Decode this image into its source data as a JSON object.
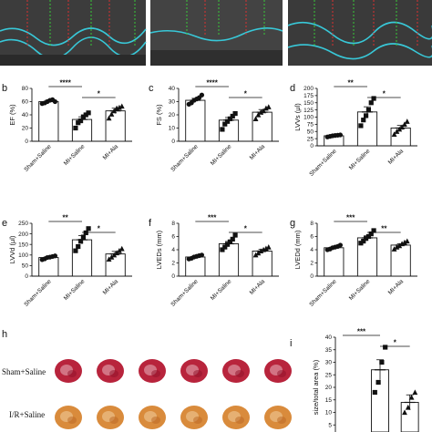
{
  "top_panels": [
    {
      "name": "echo-sham"
    },
    {
      "name": "echo-mi"
    },
    {
      "name": "echo-mi-ala"
    }
  ],
  "chart_data": [
    {
      "type": "bar",
      "panel": "b",
      "ylabel": "EF (%)",
      "categories": [
        "Sham+Saline",
        "MI+Saline",
        "MI+Ala"
      ],
      "values": [
        60,
        33,
        46
      ],
      "errors": [
        2,
        4,
        4
      ],
      "ylim": [
        0,
        80
      ],
      "yticks": [
        0,
        20,
        40,
        60,
        80
      ],
      "points": [
        [
          57,
          58,
          60,
          62,
          63,
          60
        ],
        [
          20,
          28,
          31,
          37,
          40,
          43
        ],
        [
          35,
          41,
          46,
          50,
          51,
          53
        ]
      ],
      "markers": [
        "circle",
        "square",
        "triangle"
      ],
      "comparisons": [
        {
          "from": 0,
          "to": 1,
          "label": "****"
        },
        {
          "from": 1,
          "to": 2,
          "label": "*"
        }
      ]
    },
    {
      "type": "bar",
      "panel": "c",
      "ylabel": "FS (%)",
      "categories": [
        "Sham+Saline",
        "MI+Saline",
        "MI+Ala"
      ],
      "values": [
        31,
        16,
        22
      ],
      "errors": [
        1.5,
        2,
        2
      ],
      "ylim": [
        0,
        40
      ],
      "yticks": [
        0,
        10,
        20,
        30,
        40
      ],
      "points": [
        [
          28,
          29,
          31,
          32,
          33,
          35
        ],
        [
          9,
          13,
          15,
          17,
          19,
          21
        ],
        [
          17,
          20,
          22,
          23,
          25,
          26
        ]
      ],
      "markers": [
        "circle",
        "square",
        "triangle"
      ],
      "comparisons": [
        {
          "from": 0,
          "to": 1,
          "label": "****"
        },
        {
          "from": 1,
          "to": 2,
          "label": "*"
        }
      ]
    },
    {
      "type": "bar",
      "panel": "d",
      "ylabel": "LVVs (μl)",
      "categories": [
        "Sham+Saline",
        "MI+Saline",
        "MI+Ala"
      ],
      "values": [
        35,
        118,
        62
      ],
      "errors": [
        3,
        18,
        9
      ],
      "ylim": [
        0,
        200
      ],
      "yticks": [
        0,
        25,
        50,
        75,
        100,
        125,
        150,
        175,
        200
      ],
      "points": [
        [
          31,
          33,
          35,
          36,
          37,
          38
        ],
        [
          70,
          90,
          105,
          125,
          150,
          165
        ],
        [
          40,
          50,
          58,
          65,
          75,
          85
        ]
      ],
      "markers": [
        "circle",
        "square",
        "triangle"
      ],
      "comparisons": [
        {
          "from": 0,
          "to": 1,
          "label": "**"
        },
        {
          "from": 1,
          "to": 2,
          "label": "*"
        }
      ]
    },
    {
      "type": "bar",
      "panel": "e",
      "ylabel": "LVVd (μl)",
      "categories": [
        "Sham+Saline",
        "MI+Saline",
        "MI+Ala"
      ],
      "values": [
        88,
        172,
        105
      ],
      "errors": [
        5,
        20,
        12
      ],
      "ylim": [
        0,
        250
      ],
      "yticks": [
        0,
        50,
        100,
        150,
        200,
        250
      ],
      "points": [
        [
          78,
          82,
          88,
          90,
          93,
          96
        ],
        [
          120,
          140,
          165,
          185,
          205,
          225
        ],
        [
          80,
          90,
          100,
          110,
          120,
          130
        ]
      ],
      "markers": [
        "circle",
        "square",
        "triangle"
      ],
      "comparisons": [
        {
          "from": 0,
          "to": 1,
          "label": "**"
        },
        {
          "from": 1,
          "to": 2,
          "label": "*"
        }
      ]
    },
    {
      "type": "bar",
      "panel": "f",
      "ylabel": "LVEDs (mm)",
      "categories": [
        "Sham+Saline",
        "MI+Saline",
        "MI+Ala"
      ],
      "values": [
        2.9,
        4.9,
        3.8
      ],
      "errors": [
        0.15,
        0.35,
        0.25
      ],
      "ylim": [
        0,
        8
      ],
      "yticks": [
        0,
        2,
        4,
        6,
        8
      ],
      "points": [
        [
          2.6,
          2.7,
          2.9,
          3.0,
          3.1,
          3.2
        ],
        [
          4.0,
          4.4,
          4.8,
          5.2,
          5.6,
          6.2
        ],
        [
          3.2,
          3.5,
          3.8,
          4.0,
          4.2,
          4.4
        ]
      ],
      "markers": [
        "circle",
        "square",
        "triangle"
      ],
      "comparisons": [
        {
          "from": 0,
          "to": 1,
          "label": "***"
        },
        {
          "from": 1,
          "to": 2,
          "label": "*"
        }
      ]
    },
    {
      "type": "bar",
      "panel": "g",
      "ylabel": "LVEDd (mm)",
      "categories": [
        "Sham+Saline",
        "MI+Saline",
        "MI+Ala"
      ],
      "values": [
        4.3,
        5.8,
        4.7
      ],
      "errors": [
        0.12,
        0.3,
        0.2
      ],
      "ylim": [
        0,
        8
      ],
      "yticks": [
        0,
        2,
        4,
        6,
        8
      ],
      "points": [
        [
          4.0,
          4.1,
          4.3,
          4.4,
          4.5,
          4.7
        ],
        [
          5.0,
          5.3,
          5.7,
          6.0,
          6.4,
          6.9
        ],
        [
          4.1,
          4.4,
          4.6,
          4.9,
          5.1,
          5.3
        ]
      ],
      "markers": [
        "circle",
        "square",
        "triangle"
      ],
      "comparisons": [
        {
          "from": 0,
          "to": 1,
          "label": "***"
        },
        {
          "from": 1,
          "to": 2,
          "label": "**"
        }
      ]
    },
    {
      "type": "bar",
      "panel": "i",
      "ylabel": "size/total area (%)",
      "categories": [
        "",
        ""
      ],
      "values": [
        27,
        14
      ],
      "errors": [
        4,
        3
      ],
      "ylim": [
        0,
        40
      ],
      "yticks": [
        0,
        5,
        10,
        15,
        20,
        25,
        30,
        35,
        40
      ],
      "points": [
        [
          18,
          22,
          30,
          36
        ],
        [
          10,
          12,
          16,
          18
        ]
      ],
      "markers": [
        "square",
        "triangle"
      ],
      "comparisons": [
        {
          "from": -1,
          "to": 0,
          "label": "***"
        },
        {
          "from": 0,
          "to": 1,
          "label": "*"
        }
      ]
    }
  ],
  "tissue_panel": {
    "letter": "h",
    "rows": [
      {
        "label": "Sham+Saline",
        "color": "#b8243c"
      },
      {
        "label": "I/R+Saline",
        "color": "#d98b3c"
      }
    ]
  }
}
